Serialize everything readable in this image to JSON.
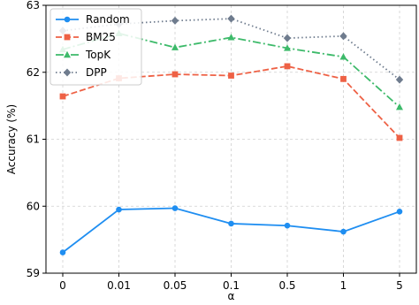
{
  "chart_data": {
    "type": "line",
    "title": "",
    "xlabel": "α",
    "ylabel": "Accuracy (%)",
    "categories": [
      "0",
      "0.01",
      "0.05",
      "0.1",
      "0.5",
      "1",
      "5"
    ],
    "ylim": [
      59,
      63
    ],
    "yticks": [
      "59",
      "60",
      "61",
      "62",
      "63"
    ],
    "grid": true,
    "legend_position": "top-left",
    "series": [
      {
        "name": "Random",
        "values": [
          59.31,
          59.95,
          59.97,
          59.74,
          59.71,
          59.62,
          59.92
        ],
        "color": "#1f8ef1",
        "marker": "circle",
        "dash": "solid"
      },
      {
        "name": "BM25",
        "values": [
          61.64,
          61.91,
          61.97,
          61.95,
          62.09,
          61.9,
          61.02
        ],
        "color": "#ee6145",
        "marker": "square",
        "dash": "dashed"
      },
      {
        "name": "TopK",
        "values": [
          62.34,
          62.58,
          62.37,
          62.52,
          62.36,
          62.23,
          61.48
        ],
        "color": "#3dba6a",
        "marker": "triangle",
        "dash": "dashdot"
      },
      {
        "name": "DPP",
        "values": [
          62.62,
          62.72,
          62.77,
          62.8,
          62.51,
          62.54,
          61.89
        ],
        "color": "#6f7c8e",
        "marker": "diamond",
        "dash": "dotted"
      }
    ]
  }
}
